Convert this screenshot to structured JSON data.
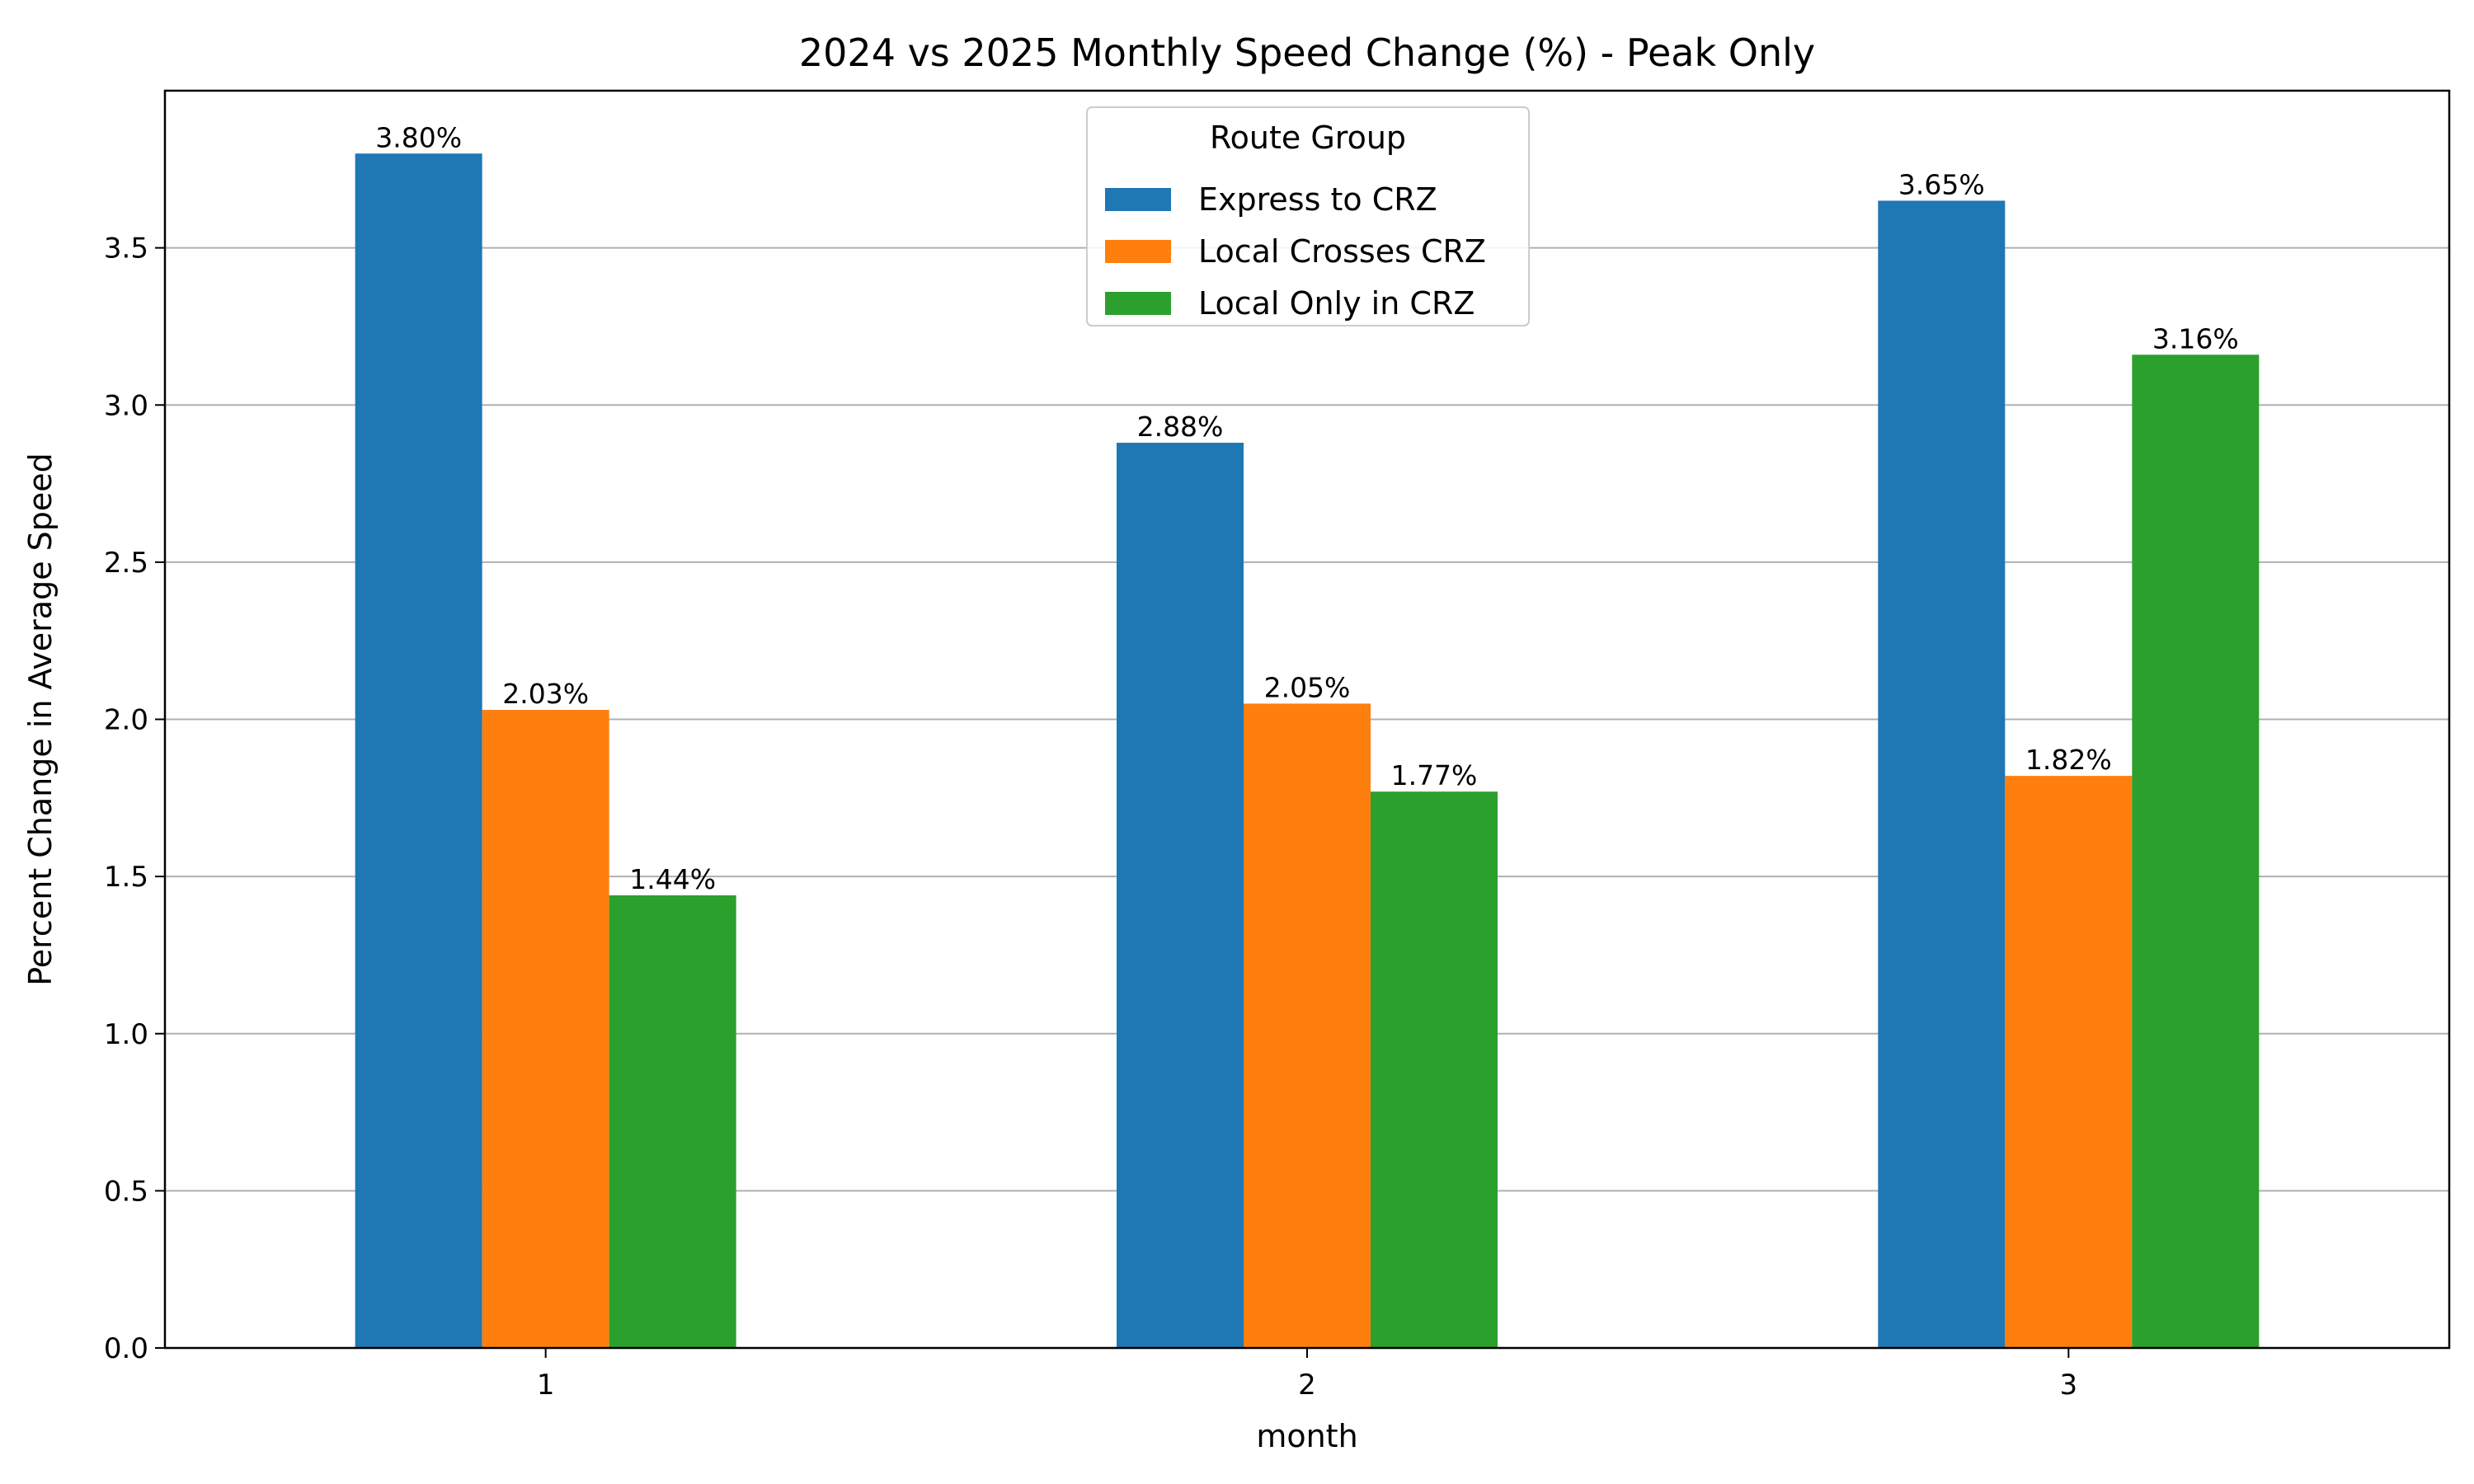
{
  "chart_data": {
    "type": "bar",
    "title": "2024 vs 2025 Monthly Speed Change (%) - Peak Only",
    "xlabel": "month",
    "ylabel": "Percent Change in Average Speed",
    "categories": [
      "1",
      "2",
      "3"
    ],
    "series": [
      {
        "name": "Express to CRZ",
        "color": "#1f77b4",
        "values": [
          3.8,
          2.88,
          3.65
        ],
        "labels": [
          "3.80%",
          "2.88%",
          "3.65%"
        ]
      },
      {
        "name": "Local Crosses CRZ",
        "color": "#ff7f0e",
        "values": [
          2.03,
          2.05,
          1.82
        ],
        "labels": [
          "2.03%",
          "2.05%",
          "1.82%"
        ]
      },
      {
        "name": "Local Only in CRZ",
        "color": "#2ca02c",
        "values": [
          1.44,
          1.77,
          3.16
        ],
        "labels": [
          "1.44%",
          "1.77%",
          "3.16%"
        ]
      }
    ],
    "ylim": [
      0,
      4.0
    ],
    "yticks": [
      "0.0",
      "0.5",
      "1.0",
      "1.5",
      "2.0",
      "2.5",
      "3.0",
      "3.5"
    ],
    "legend_title": "Route Group",
    "legend_placement": "upper-center",
    "grid": "y",
    "zero_line": "dashed"
  }
}
